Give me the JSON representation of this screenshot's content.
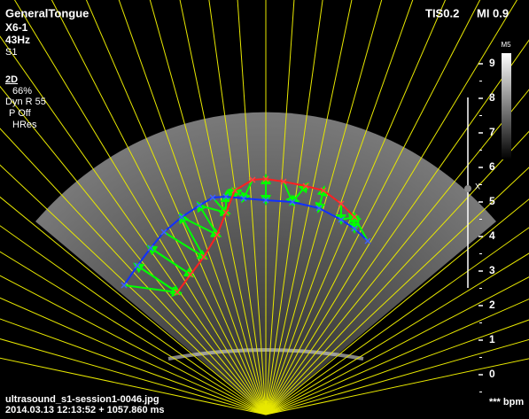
{
  "header": {
    "preset": "GeneralTongue",
    "probe": "X6-1",
    "frame_rate": "43Hz",
    "setting": "S1",
    "mode": "2D",
    "gain": "66%",
    "dynamic_range": "Dyn R 55",
    "persistence": "P Off",
    "resolution": "HRes",
    "tis": "TIS0.2",
    "mi": "MI 0.9"
  },
  "colorbar": {
    "label": "M5"
  },
  "depth_scale": {
    "labels": [
      "9",
      "8",
      "7",
      "6",
      "5",
      "4",
      "3",
      "2",
      "1",
      "0"
    ],
    "focus_marker": "X"
  },
  "footer": {
    "filename": "ultrasound_s1-session1-0046.jpg",
    "timestamp": "2014.03.13 12:13:52 + 1057.860 ms",
    "heart_rate": "*** bpm"
  }
}
